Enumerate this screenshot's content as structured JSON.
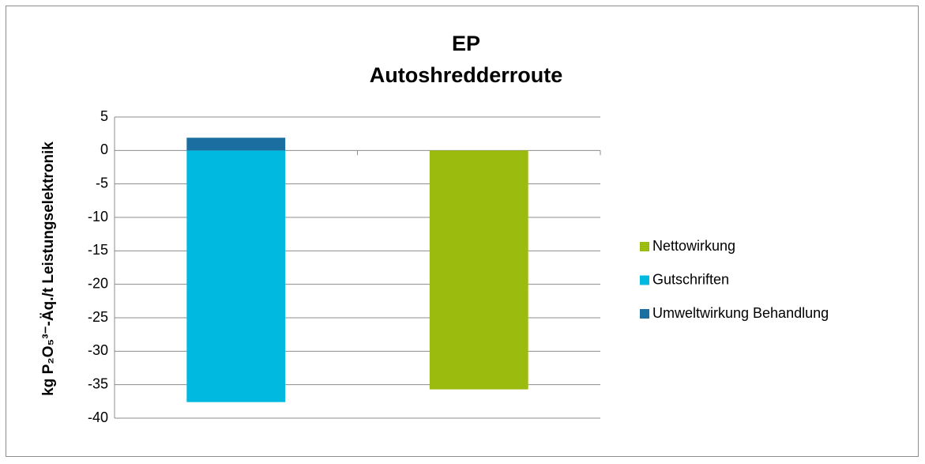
{
  "chart_data": {
    "type": "bar",
    "stacked": true,
    "title": [
      "EP",
      "Autoshredderroute"
    ],
    "y_label": "kg P₂O₅³⁻-Äq./t Leistungselektronik",
    "categories": [
      null,
      null
    ],
    "series": [
      {
        "name": "Nettowirkung",
        "color": "#9bbb0e",
        "values": [
          null,
          -35.7
        ]
      },
      {
        "name": "Gutschriften",
        "color": "#00b9e0",
        "values": [
          -37.6,
          null
        ]
      },
      {
        "name": "Umweltwirkung Behandlung",
        "color": "#1a6fa0",
        "values": [
          1.9,
          null
        ]
      }
    ],
    "ylim": [
      -40,
      5
    ],
    "yticks": [
      -40,
      -35,
      -30,
      -25,
      -20,
      -15,
      -10,
      -5,
      0,
      5
    ],
    "grid": true,
    "legend": "right"
  }
}
